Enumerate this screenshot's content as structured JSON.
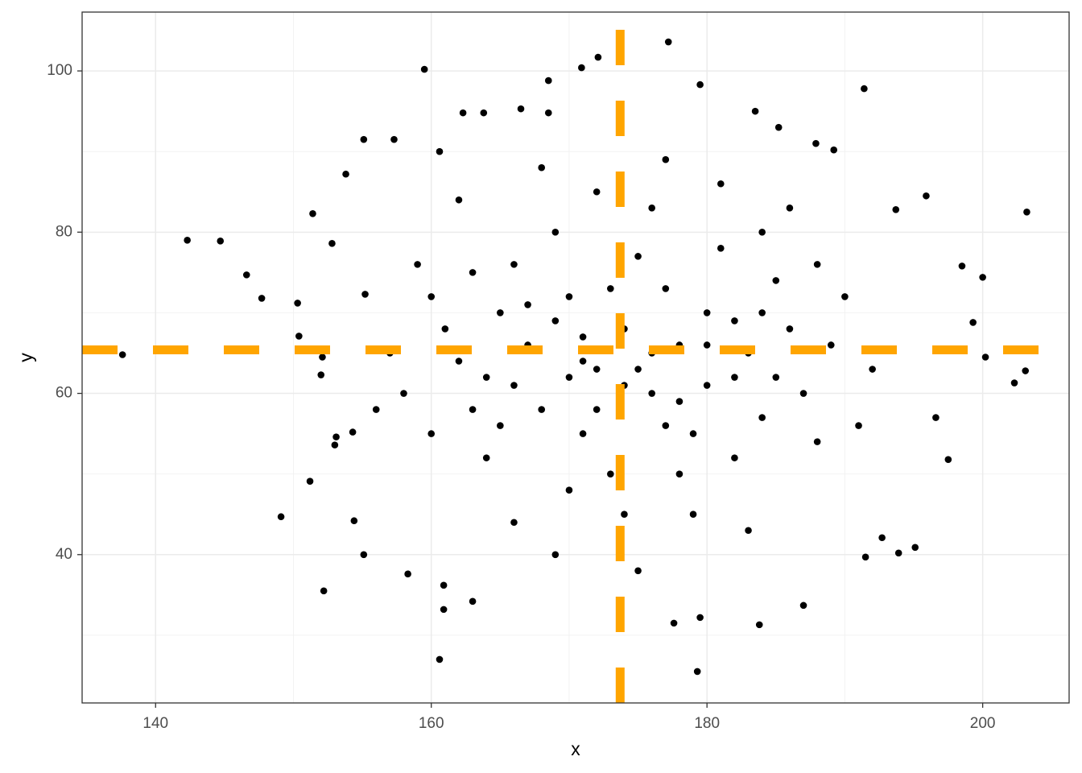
{
  "chart_data": {
    "type": "scatter",
    "x_label": "x",
    "y_label": "y",
    "xlim": [
      134.67,
      206.27
    ],
    "ylim": [
      21.6,
      107.3
    ],
    "xticks": [
      140,
      160,
      180,
      200
    ],
    "yticks": [
      40,
      60,
      80,
      100
    ],
    "xminor": [
      150,
      170,
      190
    ],
    "yminor": [
      30,
      50,
      70,
      90
    ],
    "grid": true,
    "vline": 173.7,
    "hline": 65.4,
    "line_color": "#FFA500",
    "series": [
      {
        "color": "#000000",
        "x": [
          137.6,
          142.3,
          144.7,
          146.6,
          147.7,
          150.3,
          149.1,
          151.2,
          152.2,
          151.4,
          153.8,
          154.4,
          155.1,
          159.5,
          160.6,
          160.9,
          160.9,
          163.0,
          158.3,
          177.2,
          172.1,
          179.3,
          179.5,
          177.6,
          183.8,
          187.0,
          191.4,
          203.2,
          203.1,
          202.3,
          200.2,
          200.0,
          199.3,
          198.5,
          197.5,
          196.6,
          195.9,
          195.1,
          193.9,
          191.5,
          192.7,
          193.7,
          183.5,
          179.5,
          185.2,
          187.9,
          189.2,
          170.9,
          168.5,
          166.5,
          162.3,
          163.8,
          168.5,
          155.1,
          157.3,
          160.6,
          155.2,
          152.8,
          153.1,
          154.3,
          152.1,
          150.4,
          152.0,
          153.0,
          165,
          168,
          170,
          172,
          174,
          176,
          178,
          180,
          182,
          184,
          186,
          162,
          160,
          158,
          164,
          166,
          169,
          171,
          173,
          175,
          177,
          179,
          181,
          183,
          185,
          187,
          189,
          163,
          167,
          170,
          172,
          174,
          176,
          178,
          180,
          182,
          184,
          161,
          159,
          157,
          188,
          190,
          192,
          166,
          169,
          175,
          179,
          183,
          162,
          168,
          177,
          181,
          186,
          164,
          171,
          173,
          176,
          178,
          170,
          167,
          165,
          172,
          174,
          180,
          182,
          185,
          163,
          160,
          156,
          191,
          188,
          184,
          177,
          175,
          171,
          169,
          166
        ],
        "values": [
          64.8,
          79.0,
          78.9,
          74.7,
          71.8,
          71.2,
          44.7,
          49.1,
          35.5,
          82.3,
          87.2,
          44.2,
          40.0,
          100.2,
          27.0,
          33.2,
          36.2,
          34.2,
          37.6,
          103.6,
          101.7,
          25.5,
          32.2,
          31.5,
          31.3,
          33.7,
          97.8,
          82.5,
          62.8,
          61.3,
          64.5,
          74.4,
          68.8,
          75.8,
          51.8,
          57.0,
          84.5,
          40.9,
          40.2,
          39.7,
          42.1,
          82.8,
          95.0,
          98.3,
          93.0,
          91.0,
          90.2,
          100.4,
          98.8,
          95.3,
          94.8,
          94.8,
          94.8,
          91.5,
          91.5,
          90.0,
          72.3,
          78.6,
          54.6,
          55.2,
          64.5,
          67.1,
          62.3,
          53.6,
          70,
          58,
          72,
          63,
          68,
          60,
          66,
          70,
          62,
          57,
          68,
          64,
          72,
          60,
          52,
          76,
          80,
          55,
          50,
          77,
          73,
          55,
          78,
          65,
          74,
          60,
          66,
          58,
          66,
          48,
          85,
          45,
          83,
          50,
          61,
          52,
          80,
          68,
          76,
          65,
          54,
          72,
          63,
          44,
          40,
          38,
          45,
          43,
          84,
          88,
          89,
          86,
          83,
          62,
          67,
          73,
          65,
          59,
          62,
          71,
          56,
          58,
          61,
          66,
          69,
          62,
          75,
          55,
          58,
          56,
          76,
          70,
          56,
          63,
          64,
          69,
          61
        ]
      }
    ]
  }
}
